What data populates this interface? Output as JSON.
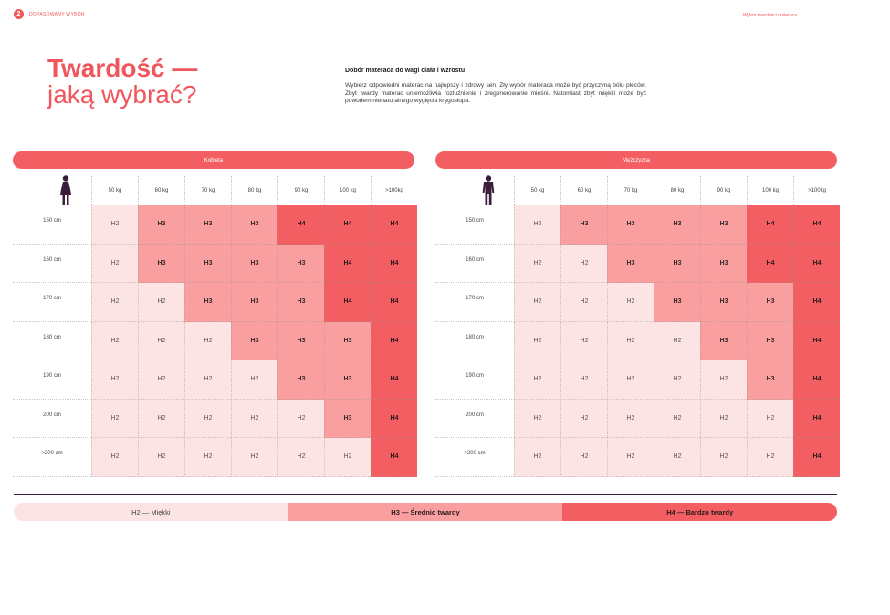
{
  "header": {
    "page_number": "2",
    "section_label": "DOPASOWANY WYBÓR",
    "top_right": "Wybór twardości materaca"
  },
  "title": {
    "line1": "Twardość —",
    "line2": "jaką wybrać?"
  },
  "intro": {
    "heading": "Dobór materaca do wagi ciała i wzrostu",
    "body": "Wybierz odpowiedni materac na najlepszy i zdrowy sen. Zły wybór materaca może być przyczyną bólu pleców. Zbyt twardy materac uniemożliwia rozluźnienie i zregenerowanie mięśni. Natomiast zbyt miękki może być powodem nienaturalnego wygięcia kręgosłupa."
  },
  "colors": {
    "h2": "#fde4e4",
    "h3": "#f99fa0",
    "h4": "#f25e62",
    "accent": "#f0575d",
    "figure": "#3a1d3a"
  },
  "weights": [
    "50 kg",
    "60 kg",
    "70 kg",
    "80 kg",
    "90 kg",
    "100 kg",
    ">100kg"
  ],
  "heights": [
    "150 cm",
    "160 cm",
    "170 cm",
    "180 cm",
    "190 cm",
    "200 cm",
    ">200 cm"
  ],
  "tables": [
    {
      "label": "Kobieta",
      "icon": "woman-icon",
      "rows": [
        [
          "H2",
          "H3",
          "H3",
          "H3",
          "H4",
          "H4",
          "H4"
        ],
        [
          "H2",
          "H3",
          "H3",
          "H3",
          "H3",
          "H4",
          "H4"
        ],
        [
          "H2",
          "H2",
          "H3",
          "H3",
          "H3",
          "H4",
          "H4"
        ],
        [
          "H2",
          "H2",
          "H2",
          "H3",
          "H3",
          "H3",
          "H4"
        ],
        [
          "H2",
          "H2",
          "H2",
          "H2",
          "H3",
          "H3",
          "H4"
        ],
        [
          "H2",
          "H2",
          "H2",
          "H2",
          "H2",
          "H3",
          "H4"
        ],
        [
          "H2",
          "H2",
          "H2",
          "H2",
          "H2",
          "H2",
          "H4"
        ]
      ]
    },
    {
      "label": "Mężczyzna",
      "icon": "man-icon",
      "rows": [
        [
          "H2",
          "H3",
          "H3",
          "H3",
          "H3",
          "H4",
          "H4"
        ],
        [
          "H2",
          "H2",
          "H3",
          "H3",
          "H3",
          "H4",
          "H4"
        ],
        [
          "H2",
          "H2",
          "H2",
          "H3",
          "H3",
          "H3",
          "H4"
        ],
        [
          "H2",
          "H2",
          "H2",
          "H2",
          "H3",
          "H3",
          "H4"
        ],
        [
          "H2",
          "H2",
          "H2",
          "H2",
          "H2",
          "H3",
          "H4"
        ],
        [
          "H2",
          "H2",
          "H2",
          "H2",
          "H2",
          "H2",
          "H4"
        ],
        [
          "H2",
          "H2",
          "H2",
          "H2",
          "H2",
          "H2",
          "H4"
        ]
      ]
    }
  ],
  "legend": {
    "h2": "H2 — Miękki",
    "h3": "H3 — Średnio twardy",
    "h4": "H4 — Bardzo twardy"
  }
}
